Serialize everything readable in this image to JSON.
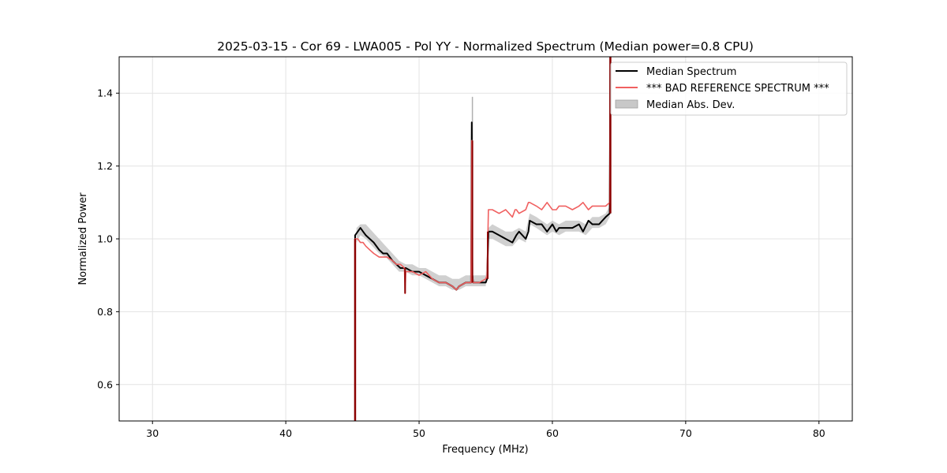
{
  "chart_data": {
    "type": "line",
    "title": "2025-03-15 - Cor 69 - LWA005 - Pol YY - Normalized Spectrum (Median power=0.8 CPU)",
    "xlabel": "Frequency (MHz)",
    "ylabel": "Normalized Power",
    "xlim": [
      27.5,
      82.5
    ],
    "ylim": [
      0.5,
      1.5
    ],
    "xticks": [
      30,
      40,
      50,
      60,
      70,
      80
    ],
    "yticks": [
      0.6,
      0.8,
      1.0,
      1.2,
      1.4
    ],
    "xtick_labels": [
      "30",
      "40",
      "50",
      "60",
      "70",
      "80"
    ],
    "ytick_labels": [
      "0.6",
      "0.8",
      "1.0",
      "1.2",
      "1.4"
    ],
    "grid": true,
    "legend_position": "top-right",
    "legend": [
      {
        "label": "Median Spectrum",
        "kind": "line",
        "color": "#000000"
      },
      {
        "label": "*** BAD REFERENCE SPECTRUM ***",
        "kind": "line",
        "color": "#f06060"
      },
      {
        "label": "Median Abs. Dev.",
        "kind": "band",
        "color": "#c8c8c8"
      }
    ],
    "series": [
      {
        "name": "Median Spectrum",
        "color": "#000000",
        "x": [
          45.2,
          45.2,
          45.4,
          45.6,
          45.8,
          46.0,
          46.3,
          46.6,
          47.0,
          47.3,
          47.6,
          48.0,
          48.3,
          48.6,
          49.0,
          49.5,
          50.0,
          50.5,
          51.0,
          51.5,
          52.0,
          52.5,
          52.8,
          53.0,
          53.5,
          53.9,
          53.95,
          54.0,
          54.05,
          54.5,
          55.0,
          55.1,
          55.2,
          55.5,
          56.0,
          56.5,
          57.0,
          57.3,
          57.5,
          58.0,
          58.2,
          58.3,
          58.8,
          59.2,
          59.6,
          60.0,
          60.3,
          60.5,
          61.0,
          61.5,
          62.0,
          62.3,
          62.7,
          63.0,
          63.5,
          64.0,
          64.3,
          64.35
        ],
        "y": [
          0.5,
          1.01,
          1.02,
          1.03,
          1.02,
          1.01,
          1.0,
          0.99,
          0.97,
          0.96,
          0.96,
          0.94,
          0.93,
          0.92,
          0.92,
          0.91,
          0.91,
          0.9,
          0.89,
          0.88,
          0.88,
          0.87,
          0.86,
          0.87,
          0.88,
          0.88,
          1.32,
          0.9,
          0.88,
          0.88,
          0.88,
          0.89,
          1.02,
          1.02,
          1.01,
          1.0,
          0.99,
          1.01,
          1.02,
          1.0,
          1.02,
          1.05,
          1.04,
          1.04,
          1.02,
          1.04,
          1.02,
          1.03,
          1.03,
          1.03,
          1.04,
          1.02,
          1.05,
          1.04,
          1.04,
          1.06,
          1.07,
          1.5
        ]
      },
      {
        "name": "*** BAD REFERENCE SPECTRUM ***",
        "color": "#f06060",
        "x": [
          45.2,
          45.2,
          45.4,
          45.6,
          45.8,
          46.0,
          46.3,
          46.6,
          47.0,
          47.3,
          47.6,
          48.0,
          48.3,
          48.6,
          48.9,
          48.95,
          49.0,
          49.5,
          50.0,
          50.5,
          51.0,
          51.5,
          52.0,
          52.5,
          52.8,
          53.0,
          53.5,
          53.9,
          53.95,
          54.0,
          54.05,
          54.5,
          55.0,
          55.1,
          55.2,
          55.5,
          56.0,
          56.5,
          57.0,
          57.2,
          57.3,
          57.5,
          58.0,
          58.2,
          58.3,
          58.8,
          59.2,
          59.6,
          60.0,
          60.3,
          60.5,
          61.0,
          61.5,
          62.0,
          62.3,
          62.7,
          63.0,
          63.5,
          64.0,
          64.3,
          64.35
        ],
        "y": [
          0.5,
          1.0,
          1.0,
          0.99,
          0.99,
          0.98,
          0.97,
          0.96,
          0.95,
          0.95,
          0.95,
          0.94,
          0.93,
          0.93,
          0.92,
          0.85,
          0.91,
          0.91,
          0.9,
          0.91,
          0.89,
          0.88,
          0.88,
          0.87,
          0.86,
          0.87,
          0.88,
          0.88,
          1.27,
          0.9,
          0.88,
          0.88,
          0.89,
          0.9,
          1.08,
          1.08,
          1.07,
          1.08,
          1.06,
          1.08,
          1.08,
          1.07,
          1.08,
          1.1,
          1.1,
          1.09,
          1.08,
          1.1,
          1.08,
          1.08,
          1.09,
          1.09,
          1.08,
          1.09,
          1.1,
          1.08,
          1.09,
          1.09,
          1.09,
          1.1,
          1.5
        ]
      }
    ],
    "mad_band": {
      "name": "Median Abs. Dev.",
      "color": "#c8c8c8",
      "x": [
        45.3,
        45.6,
        46.0,
        46.5,
        47.0,
        47.5,
        48.0,
        48.5,
        49.0,
        49.5,
        50.0,
        50.5,
        51.0,
        51.5,
        52.0,
        52.5,
        53.0,
        53.5,
        54.0,
        54.5,
        55.0,
        55.2,
        55.5,
        56.0,
        56.5,
        57.0,
        57.5,
        58.0,
        58.3,
        58.8,
        59.2,
        59.6,
        60.0,
        60.5,
        61.0,
        61.5,
        62.0,
        62.5,
        63.0,
        63.5,
        64.0,
        64.3
      ],
      "lower": [
        0.99,
        1.01,
        1.0,
        0.98,
        0.96,
        0.95,
        0.93,
        0.91,
        0.91,
        0.9,
        0.9,
        0.89,
        0.88,
        0.87,
        0.87,
        0.86,
        0.86,
        0.87,
        0.87,
        0.87,
        0.87,
        1.0,
        1.0,
        0.99,
        0.98,
        0.98,
        1.0,
        0.99,
        1.04,
        1.03,
        1.02,
        1.01,
        1.02,
        1.01,
        1.02,
        1.02,
        1.02,
        1.01,
        1.03,
        1.03,
        1.04,
        1.06
      ],
      "upper": [
        1.03,
        1.04,
        1.04,
        1.02,
        1.0,
        0.98,
        0.96,
        0.94,
        0.93,
        0.93,
        0.92,
        0.92,
        0.91,
        0.9,
        0.9,
        0.89,
        0.89,
        0.9,
        0.9,
        0.9,
        0.9,
        1.03,
        1.04,
        1.03,
        1.02,
        1.02,
        1.03,
        1.02,
        1.07,
        1.06,
        1.05,
        1.04,
        1.05,
        1.04,
        1.05,
        1.05,
        1.05,
        1.04,
        1.06,
        1.06,
        1.07,
        1.09
      ]
    },
    "annotations": [
      {
        "kind": "spike",
        "x": 54.0,
        "top": 1.39,
        "color": "#b0b0b0"
      }
    ]
  }
}
